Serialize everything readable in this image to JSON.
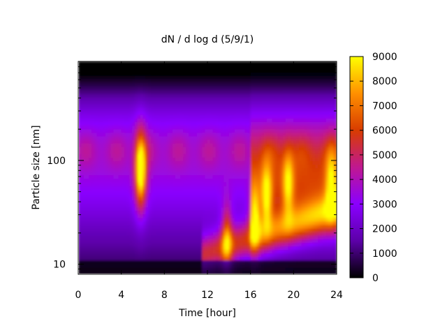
{
  "chart_data": {
    "type": "heatmap",
    "title": "dN / d log d (5/9/1)",
    "xlabel": "Time [hour]",
    "ylabel": "Particle size [nm]",
    "x_range": [
      0,
      24
    ],
    "x_ticks": [
      0,
      4,
      8,
      12,
      16,
      20,
      24
    ],
    "x_tick_labels": [
      "0",
      "4",
      "8",
      "12",
      "16",
      "20",
      "24"
    ],
    "y_scale": "log",
    "y_range": [
      8,
      900
    ],
    "y_ticks": [
      10,
      100
    ],
    "y_tick_labels": [
      "10",
      "100"
    ],
    "colorbar": {
      "range": [
        0,
        9000
      ],
      "ticks": [
        0,
        1000,
        2000,
        3000,
        4000,
        5000,
        6000,
        7000,
        8000,
        9000
      ],
      "tick_labels": [
        "0",
        "1000",
        "2000",
        "3000",
        "4000",
        "5000",
        "6000",
        "7000",
        "8000",
        "9000"
      ],
      "palette": [
        "#000000",
        "#5c00a8",
        "#8a00ff",
        "#c01890",
        "#d83c00",
        "#ff9000",
        "#ffff00"
      ]
    },
    "grid": false,
    "legend": "none",
    "features": [
      {
        "time": 5.8,
        "size_nm": 80,
        "value": 8500
      },
      {
        "time": 13.8,
        "size_nm": 18,
        "value": 7000
      },
      {
        "time": 16.4,
        "size_nm": 28,
        "value": 7500
      },
      {
        "time": 17.5,
        "size_nm": 45,
        "value": 7000
      },
      {
        "time": 19.5,
        "size_nm": 60,
        "value": 6000
      },
      {
        "time": 23.5,
        "size_nm": 60,
        "value": 6000
      }
    ]
  }
}
